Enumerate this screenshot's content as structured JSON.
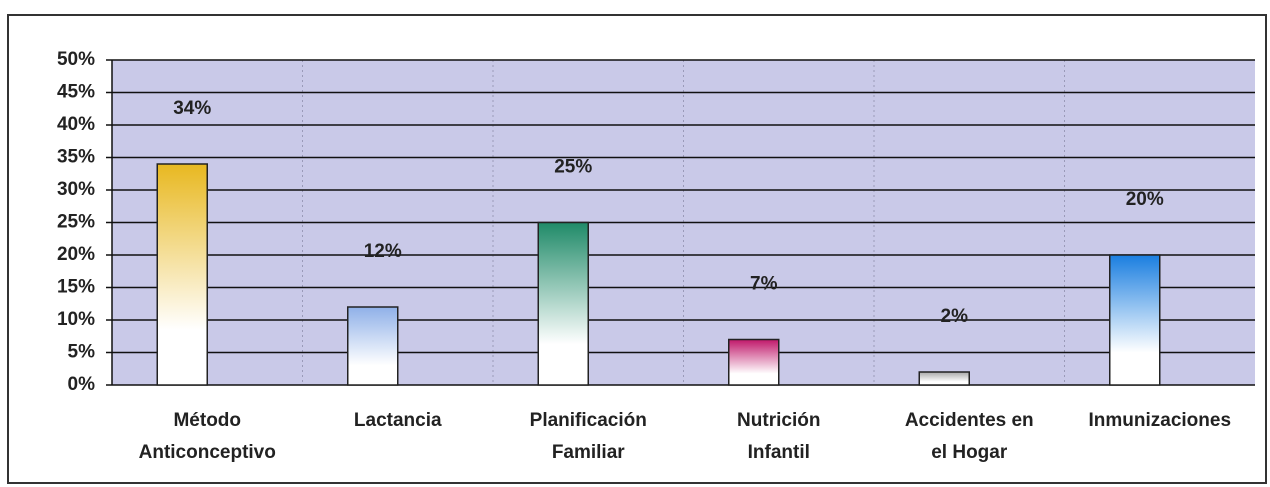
{
  "chart_data": {
    "type": "bar",
    "categories": [
      [
        "Método",
        "Anticonceptivo"
      ],
      [
        "Lactancia"
      ],
      [
        "Planificación",
        "Familiar"
      ],
      [
        "Nutrición",
        "Infantil"
      ],
      [
        "Accidentes en",
        "el Hogar"
      ],
      [
        "Inmunizaciones"
      ]
    ],
    "values": [
      34,
      12,
      25,
      7,
      2,
      20
    ],
    "value_labels": [
      "34%",
      "12%",
      "25%",
      "7%",
      "2%",
      "20%"
    ],
    "colors": [
      "#e8b820",
      "#8fb0e8",
      "#1f8a68",
      "#c0186a",
      "#a8a8a8",
      "#1a7ee0"
    ],
    "ylim": [
      0,
      50
    ],
    "yticks": [
      {
        "value": 0,
        "label": "0%"
      },
      {
        "value": 5,
        "label": "5%"
      },
      {
        "value": 10,
        "label": "10%"
      },
      {
        "value": 15,
        "label": "15%"
      },
      {
        "value": 20,
        "label": "20%"
      },
      {
        "value": 25,
        "label": "25%"
      },
      {
        "value": 30,
        "label": "30%"
      },
      {
        "value": 35,
        "label": "35%"
      },
      {
        "value": 40,
        "label": "40%"
      },
      {
        "value": 45,
        "label": "45%"
      },
      {
        "value": 50,
        "label": "50%"
      }
    ],
    "grid": true
  }
}
